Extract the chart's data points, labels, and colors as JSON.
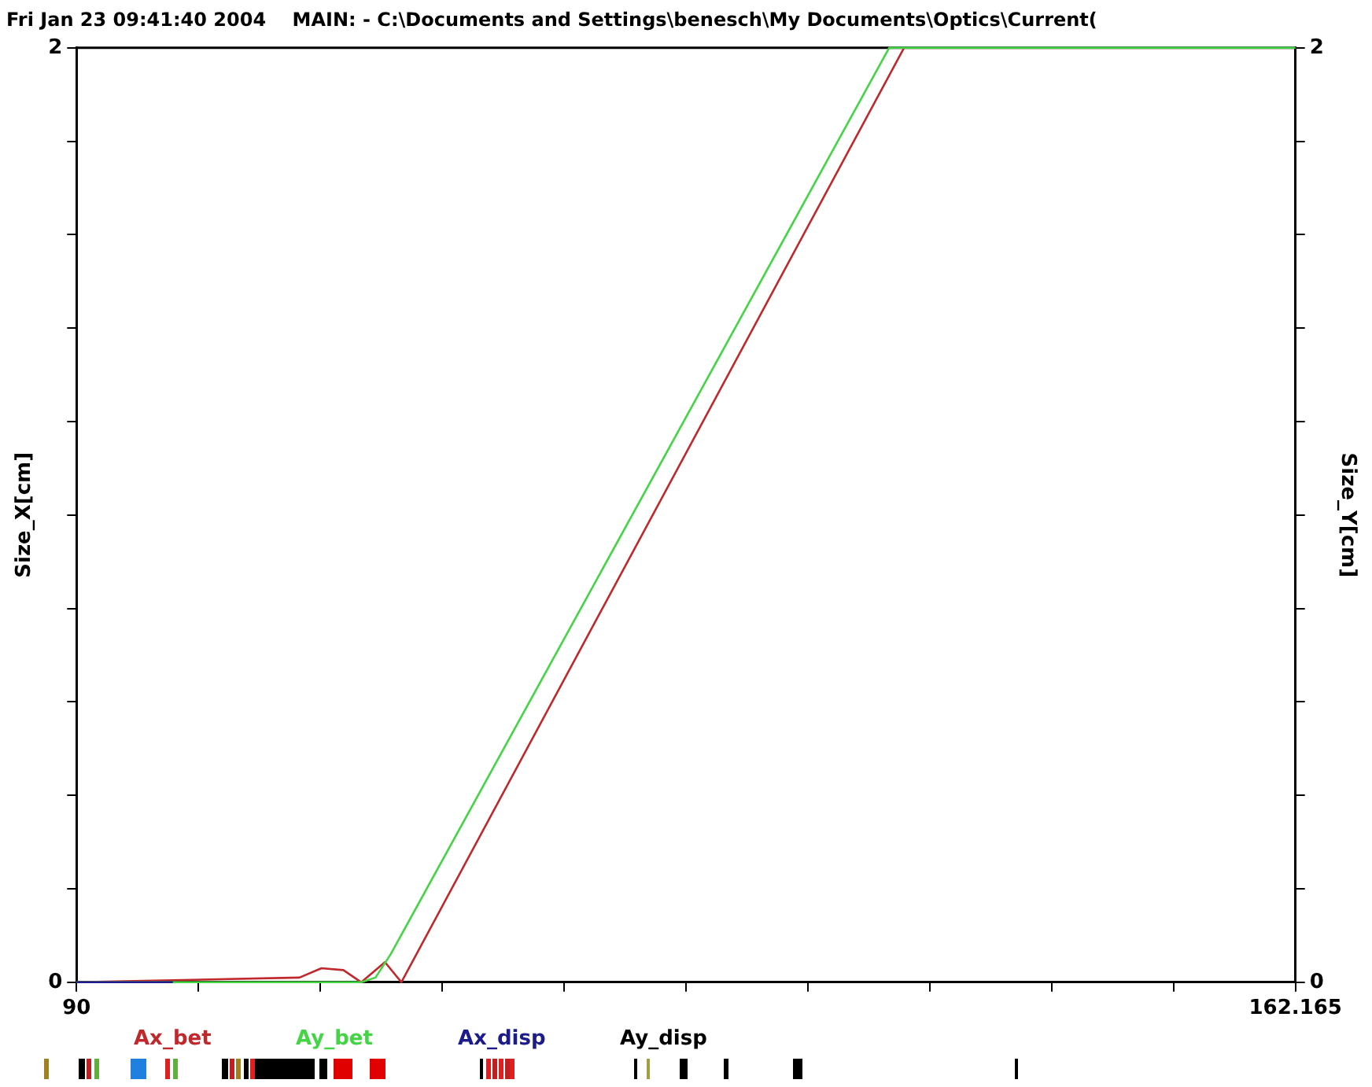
{
  "chart_data": {
    "type": "line",
    "title": "Fri Jan 23 09:41:40 2004    MAIN: - C:\\Documents and Settings\\benesch\\My Documents\\Optics\\Current(",
    "ylabel": "Size_X[cm]",
    "y2label": "Size_Y[cm]",
    "xlim": [
      90,
      162.165
    ],
    "xticks": [
      {
        "value": 90,
        "label": "90"
      },
      {
        "value": 97.2165,
        "label": null
      },
      {
        "value": 104.433,
        "label": null
      },
      {
        "value": 111.6495,
        "label": null
      },
      {
        "value": 118.866,
        "label": null
      },
      {
        "value": 126.0825,
        "label": null
      },
      {
        "value": 133.299,
        "label": null
      },
      {
        "value": 140.5155,
        "label": null
      },
      {
        "value": 147.732,
        "label": null
      },
      {
        "value": 154.9485,
        "label": null
      },
      {
        "value": 162.165,
        "label": "162.165"
      }
    ],
    "ylim": [
      0,
      2
    ],
    "yticks": [
      0,
      {
        "value": 0.2,
        "label": null
      },
      {
        "value": 0.4,
        "label": null
      },
      {
        "value": 0.6,
        "label": null
      },
      {
        "value": 0.8,
        "label": null
      },
      {
        "value": 1,
        "label": null
      },
      {
        "value": 1.2,
        "label": null
      },
      {
        "value": 1.4,
        "label": null
      },
      {
        "value": 1.6,
        "label": null
      },
      {
        "value": 1.8,
        "label": null
      },
      2
    ],
    "y2lim": [
      0,
      2
    ],
    "y2ticks": [
      0,
      {
        "value": 0.2,
        "label": null
      },
      {
        "value": 0.4,
        "label": null
      },
      {
        "value": 0.6,
        "label": null
      },
      {
        "value": 0.8,
        "label": null
      },
      {
        "value": 1,
        "label": null
      },
      {
        "value": 1.2,
        "label": null
      },
      {
        "value": 1.4,
        "label": null
      },
      {
        "value": 1.6,
        "label": null
      },
      {
        "value": 1.8,
        "label": null
      },
      2
    ],
    "grid": false,
    "legend": "bottom",
    "marker": "none",
    "line_style": "solid",
    "series": [
      {
        "name": "Ax_bet",
        "color": "#c0282c",
        "x": [
          90,
          103.2,
          104.5,
          105.8,
          106.86,
          108.26,
          109.23,
          138.99
        ],
        "values": [
          0,
          0.01,
          0.03,
          0.026,
          0,
          0.043,
          0,
          2
        ]
      },
      {
        "name": "Ay_bet",
        "color": "#44d544",
        "x": [
          90,
          106.86,
          107.7,
          108.6,
          138.11,
          162.165
        ],
        "values": [
          0,
          0,
          0.01,
          0.06,
          2,
          2
        ]
      },
      {
        "name": "Ax_disp",
        "color": "#1c1c8c",
        "x": [
          90,
          95.7
        ],
        "values": [
          0,
          0
        ]
      }
    ],
    "annotations": [
      "Ay_disp"
    ]
  }
}
